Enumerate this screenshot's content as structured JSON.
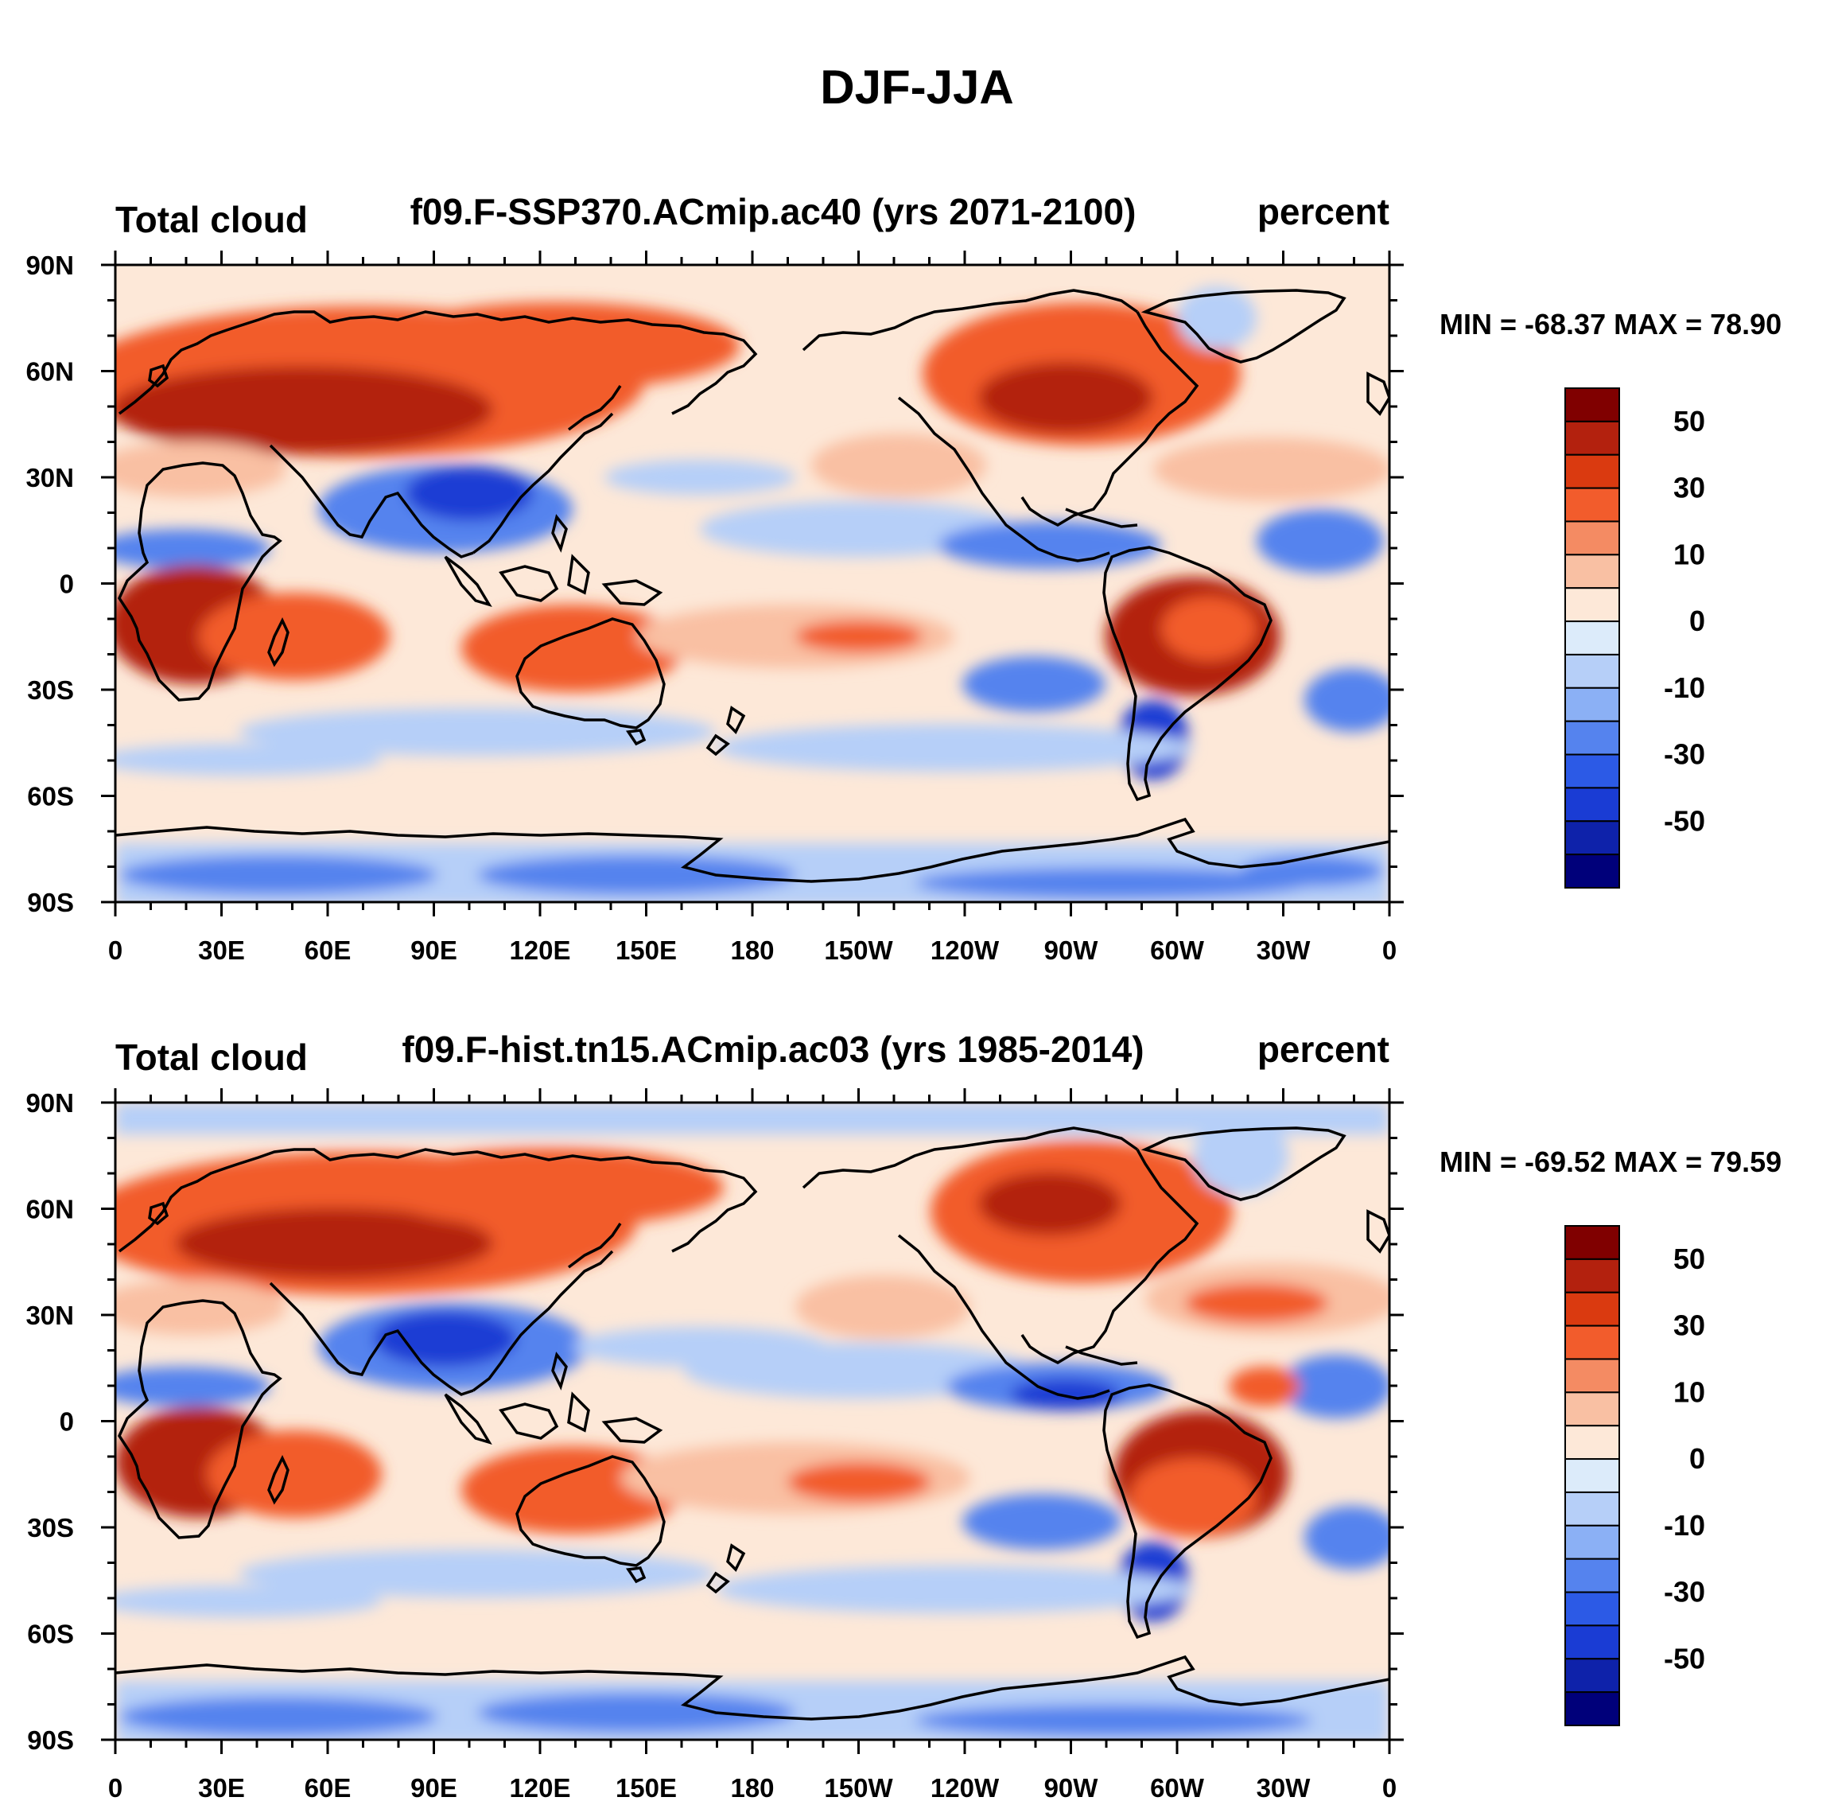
{
  "figure": {
    "title": "DJF-JJA"
  },
  "panels": [
    {
      "id": "future",
      "left_label": "Total cloud",
      "center_label": "f09.F-SSP370.ACmip.ac40 (yrs 2071-2100)",
      "right_label": "percent",
      "min_max_text": "MIN = -68.37 MAX =  78.90",
      "stats": {
        "min": -68.37,
        "max": 78.9
      }
    },
    {
      "id": "historical",
      "left_label": "Total cloud",
      "center_label": "f09.F-hist.tn15.ACmip.ac03 (yrs 1985-2014)",
      "right_label": "percent",
      "min_max_text": "MIN = -69.52 MAX =  79.59",
      "stats": {
        "min": -69.52,
        "max": 79.59
      }
    }
  ],
  "axes": {
    "lat_ticks": [
      "90N",
      "60N",
      "30N",
      "0",
      "30S",
      "60S",
      "90S"
    ],
    "lon_ticks": [
      "0",
      "30E",
      "60E",
      "90E",
      "120E",
      "150E",
      "180",
      "150W",
      "120W",
      "90W",
      "60W",
      "30W",
      "0"
    ]
  },
  "colorbar": {
    "labels": [
      "50",
      "30",
      "10",
      "0",
      "-10",
      "-30",
      "-50"
    ],
    "colors": [
      "#800000",
      "#b3210e",
      "#da3a10",
      "#f25c2c",
      "#f48b63",
      "#f9c0a3",
      "#fde8d8",
      "#dcebfa",
      "#b6cff8",
      "#8bb0f5",
      "#5583ee",
      "#2c5ae6",
      "#1a3cd4",
      "#0e22aa",
      "#00007a"
    ]
  },
  "map_colors": {
    "land_outline": "#000000",
    "strong_pos": "#b3210e",
    "pos": "#f25c2c",
    "weak_pos": "#f9c0a3",
    "neutral": "#fde8d8",
    "weak_neg": "#b6cff8",
    "neg": "#5583ee",
    "strong_neg": "#1a3cd4"
  }
}
